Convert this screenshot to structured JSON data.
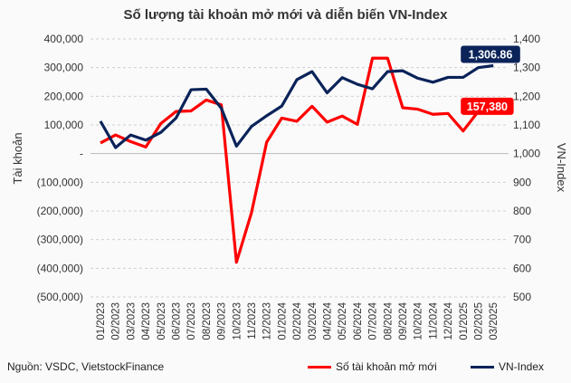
{
  "chart_data": {
    "type": "line",
    "title": "Số lượng tài khoản mở mới và diễn biến VN-Index",
    "ylabel": "Tài khoản",
    "y2label": "VN-Index",
    "ylim": [
      -500000,
      400000
    ],
    "y2lim": [
      500,
      1400
    ],
    "yticks": [
      "400,000",
      "300,000",
      "200,000",
      "100,000",
      "-",
      "(100,000)",
      "(200,000)",
      "(300,000)",
      "(400,000)",
      "(500,000)"
    ],
    "y2ticks": [
      "1,400",
      "1,300",
      "1,200",
      "1,100",
      "1,000",
      "900",
      "800",
      "700",
      "600",
      "500"
    ],
    "grid": true,
    "legend": "bottom",
    "categories": [
      "01/2023",
      "02/2023",
      "03/2023",
      "04/2023",
      "05/2023",
      "06/2023",
      "07/2023",
      "08/2023",
      "09/2023",
      "10/2023",
      "11/2023",
      "12/2023",
      "01/2024",
      "02/2024",
      "03/2024",
      "04/2024",
      "05/2024",
      "06/2024",
      "07/2024",
      "08/2024",
      "09/2024",
      "10/2024",
      "11/2024",
      "12/2024",
      "01/2025",
      "02/2025",
      "03/2025"
    ],
    "series": [
      {
        "name": "Số tài khoản mở mới",
        "axis": "left",
        "color": "#ff0000",
        "values": [
          37000,
          65000,
          42000,
          23000,
          105000,
          147000,
          149000,
          187000,
          170000,
          -379000,
          -205000,
          40000,
          124000,
          113000,
          165000,
          110000,
          131000,
          102000,
          333000,
          333000,
          160000,
          155000,
          137000,
          140000,
          79000,
          147000,
          157380
        ],
        "last_label": "157,380"
      },
      {
        "name": "VN-Index",
        "axis": "right",
        "color": "#0a2359",
        "values": [
          1113,
          1021,
          1065,
          1047,
          1074,
          1124,
          1223,
          1225,
          1158,
          1026,
          1095,
          1132,
          1166,
          1258,
          1286,
          1212,
          1265,
          1242,
          1226,
          1286,
          1289,
          1263,
          1249,
          1266,
          1266,
          1300,
          1306.86
        ],
        "last_label": "1,306.86"
      }
    ]
  },
  "source": "Nguồn: VSDC, VietstockFinance"
}
